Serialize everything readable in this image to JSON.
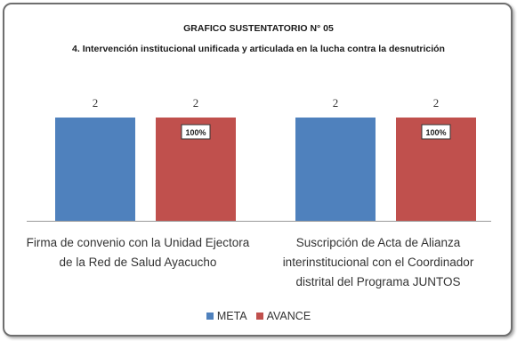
{
  "colors": {
    "meta": "#4f81bd",
    "avance": "#c0504d"
  },
  "title_line1": "GRAFICO SUSTENTATORIO N° 05",
  "title_line2": "4. Intervención institucional unificada y articulada en la lucha contra la desnutrición",
  "chart_data": {
    "type": "bar",
    "title": "GRAFICO SUSTENTATORIO N° 05",
    "subtitle": "4. Intervención institucional unificada y articulada en la lucha contra la desnutrición",
    "categories": [
      "Firma de convenio con la Unidad Ejectora de la Red de Salud Ayacucho",
      "Suscripción de Acta de Alianza interinstitucional con el Coordinador distrital del Programa JUNTOS"
    ],
    "category_lines": [
      [
        "Firma de convenio con la Unidad Ejectora",
        "de la Red de Salud Ayacucho"
      ],
      [
        "Suscripción de Acta de Alianza",
        "interinstitucional con el Coordinador",
        "distrital del Programa JUNTOS"
      ]
    ],
    "series": [
      {
        "name": "META",
        "values": [
          2,
          2
        ],
        "value_labels": [
          "2",
          "2"
        ]
      },
      {
        "name": "AVANCE",
        "values": [
          2,
          2
        ],
        "value_labels": [
          "2",
          "2"
        ],
        "annotations": [
          "100%",
          "100%"
        ]
      }
    ],
    "ylim": [
      0,
      2
    ],
    "grid": false,
    "legend": "bottom"
  }
}
